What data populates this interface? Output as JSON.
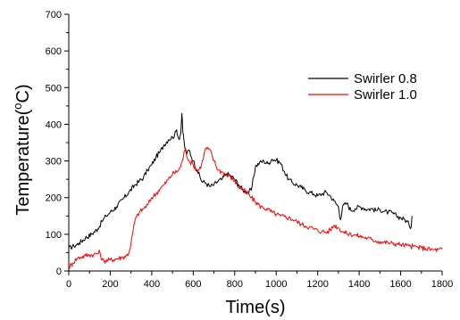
{
  "chart_data": {
    "type": "line",
    "xlabel": "Time(s)",
    "ylabel": "Temperature(",
    "ylabel_sup": "o",
    "ylabel_unit": "C)",
    "xlim": [
      0,
      1800
    ],
    "ylim": [
      0,
      700
    ],
    "xticks": [
      0,
      200,
      400,
      600,
      800,
      1000,
      1200,
      1400,
      1600,
      1800
    ],
    "yticks": [
      0,
      100,
      200,
      300,
      400,
      500,
      600,
      700
    ],
    "legend_position": "right",
    "grid": false,
    "series": [
      {
        "name": "Swirler 0.8",
        "color": "#000000",
        "x": [
          0,
          25,
          50,
          80,
          110,
          140,
          160,
          180,
          200,
          230,
          260,
          290,
          320,
          340,
          360,
          380,
          400,
          420,
          440,
          460,
          480,
          500,
          510,
          520,
          530,
          540,
          545,
          550,
          560,
          570,
          580,
          600,
          620,
          640,
          660,
          680,
          700,
          720,
          740,
          760,
          780,
          800,
          820,
          840,
          860,
          880,
          900,
          920,
          940,
          960,
          980,
          1000,
          1020,
          1040,
          1060,
          1080,
          1100,
          1120,
          1140,
          1160,
          1180,
          1200,
          1220,
          1240,
          1260,
          1280,
          1300,
          1310,
          1320,
          1340,
          1360,
          1380,
          1400,
          1420,
          1440,
          1460,
          1480,
          1500,
          1520,
          1540,
          1560,
          1580,
          1600,
          1620,
          1640,
          1650,
          1655
        ],
        "y": [
          62,
          68,
          76,
          90,
          100,
          115,
          135,
          150,
          160,
          175,
          195,
          215,
          235,
          245,
          255,
          275,
          290,
          310,
          325,
          345,
          358,
          365,
          370,
          385,
          360,
          375,
          430,
          380,
          335,
          320,
          330,
          300,
          275,
          245,
          240,
          230,
          235,
          245,
          250,
          265,
          260,
          250,
          235,
          220,
          215,
          220,
          285,
          295,
          300,
          292,
          305,
          302,
          295,
          270,
          250,
          240,
          235,
          228,
          220,
          215,
          210,
          205,
          210,
          215,
          205,
          190,
          175,
          140,
          175,
          185,
          165,
          170,
          175,
          172,
          168,
          170,
          165,
          168,
          162,
          160,
          158,
          150,
          145,
          140,
          128,
          118,
          150
        ]
      },
      {
        "name": "Swirler 1.0",
        "color": "#ff0000",
        "x": [
          0,
          20,
          40,
          60,
          80,
          100,
          120,
          140,
          150,
          160,
          170,
          200,
          230,
          260,
          280,
          290,
          300,
          310,
          320,
          340,
          360,
          380,
          400,
          420,
          440,
          460,
          480,
          500,
          520,
          540,
          560,
          580,
          600,
          620,
          640,
          660,
          680,
          700,
          720,
          740,
          760,
          780,
          800,
          820,
          840,
          860,
          880,
          900,
          920,
          940,
          960,
          980,
          1000,
          1020,
          1040,
          1060,
          1080,
          1100,
          1120,
          1140,
          1160,
          1180,
          1200,
          1220,
          1240,
          1260,
          1280,
          1300,
          1320,
          1340,
          1360,
          1380,
          1400,
          1420,
          1440,
          1460,
          1480,
          1500,
          1520,
          1540,
          1560,
          1580,
          1600,
          1620,
          1640,
          1660,
          1680,
          1700,
          1720,
          1740,
          1760,
          1780,
          1800
        ],
        "y": [
          10,
          22,
          35,
          38,
          42,
          44,
          45,
          48,
          52,
          30,
          28,
          30,
          33,
          38,
          42,
          50,
          75,
          110,
          140,
          160,
          170,
          180,
          200,
          210,
          225,
          235,
          250,
          265,
          270,
          285,
          330,
          300,
          290,
          270,
          290,
          335,
          330,
          300,
          275,
          270,
          262,
          256,
          245,
          228,
          222,
          212,
          200,
          188,
          178,
          172,
          168,
          160,
          155,
          150,
          148,
          145,
          140,
          135,
          128,
          123,
          120,
          115,
          110,
          108,
          105,
          112,
          125,
          118,
          108,
          102,
          100,
          98,
          95,
          92,
          90,
          86,
          82,
          80,
          78,
          77,
          75,
          74,
          72,
          70,
          68,
          67,
          65,
          63,
          61,
          59,
          58,
          58,
          60
        ]
      }
    ]
  }
}
